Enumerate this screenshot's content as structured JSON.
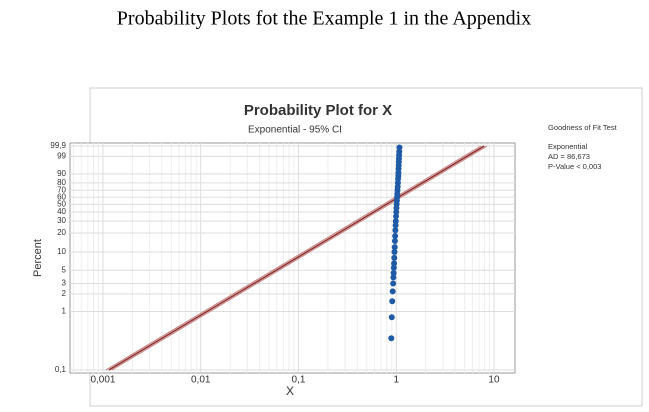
{
  "caption": "Probability  Plots  fot  the Example 1 in the Appendix",
  "chart_data": {
    "type": "probability",
    "title": "Probability Plot for X",
    "subtitle": "Exponential - 95% CI",
    "x_label": "X",
    "y_label": "Percent",
    "x_log": true,
    "grid": true,
    "xlim": [
      0.00046,
      16.4
    ],
    "ylim": [
      0.1,
      99.9
    ],
    "xticks": [
      {
        "value": 0.001,
        "label": "0,001"
      },
      {
        "value": 0.01,
        "label": "0,01"
      },
      {
        "value": 0.1,
        "label": "0,1"
      },
      1,
      10
    ],
    "yticks": [
      {
        "value": 0.1,
        "label": "0,1"
      },
      1,
      2,
      3,
      5,
      10,
      20,
      30,
      40,
      50,
      60,
      70,
      80,
      90,
      99,
      {
        "value": 99.9,
        "label": "99,9"
      }
    ],
    "fit": {
      "scale": 1.15,
      "color": "#8b2a2a"
    },
    "ci": {
      "lower": 1.07,
      "upper": 1.23,
      "color": "#c98a8a"
    },
    "series": [
      {
        "color": "#1f5aa6",
        "x": [
          0.89,
          0.9,
          0.91,
          0.92,
          0.93,
          0.935,
          0.94,
          0.945,
          0.95,
          0.955,
          0.96,
          0.965,
          0.97,
          0.975,
          0.98,
          0.985,
          0.99,
          0.995,
          1.0,
          1.005,
          1.01,
          1.015,
          1.02,
          1.025,
          1.03,
          1.035,
          1.04,
          1.045,
          1.05,
          1.053,
          1.056,
          1.06,
          1.063,
          1.066,
          1.07,
          1.075,
          1.08
        ],
        "values": [
          0.35,
          0.8,
          1.5,
          2.2,
          3,
          3.8,
          4.5,
          5.5,
          6.5,
          8,
          10,
          12,
          15,
          18,
          22,
          26,
          30,
          35,
          40,
          45,
          50,
          55,
          60,
          65,
          70,
          75,
          80,
          85,
          88,
          91,
          94,
          96,
          97.5,
          98.5,
          99.2,
          99.6,
          99.85
        ]
      }
    ],
    "annotations": [
      "Goodness of Fit Test",
      "Exponential",
      "AD = 86,673",
      "P-Value < 0,003"
    ]
  }
}
